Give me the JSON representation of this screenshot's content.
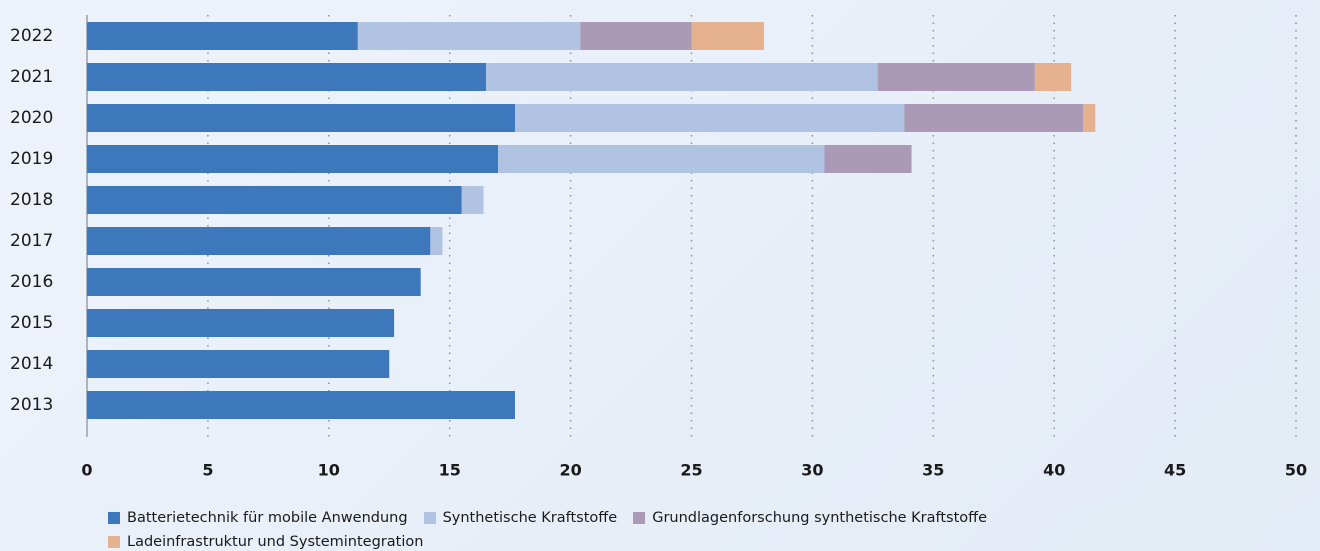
{
  "chart_data": {
    "type": "stacked-barh",
    "categories": [
      "2022",
      "2021",
      "2020",
      "2019",
      "2018",
      "2017",
      "2016",
      "2015",
      "2014",
      "2013"
    ],
    "series": [
      {
        "name": "Batterietechnik für mobile Anwendung",
        "color": "#3d78bc",
        "values": [
          11.2,
          16.5,
          17.7,
          17.0,
          15.5,
          14.2,
          13.8,
          12.7,
          12.5,
          17.7
        ]
      },
      {
        "name": "Synthetische Kraftstoffe",
        "color": "#b0c3e3",
        "values": [
          9.2,
          16.2,
          16.1,
          13.5,
          0.9,
          0.5,
          0,
          0,
          0,
          0
        ]
      },
      {
        "name": "Grundlagenforschung synthetische Kraftstoffe",
        "color": "#ab9ab6",
        "values": [
          4.6,
          6.5,
          7.4,
          3.6,
          0,
          0,
          0,
          0,
          0,
          0
        ]
      },
      {
        "name": "Ladeinfrastruktur und Systemintegration",
        "color": "#e5b18f",
        "values": [
          3.0,
          1.5,
          0.5,
          0,
          0,
          0,
          0,
          0,
          0,
          0
        ]
      }
    ],
    "xlim": [
      0,
      50
    ],
    "xticks": [
      0,
      5,
      10,
      15,
      20,
      25,
      30,
      35,
      40,
      45,
      50
    ],
    "grid": true
  }
}
